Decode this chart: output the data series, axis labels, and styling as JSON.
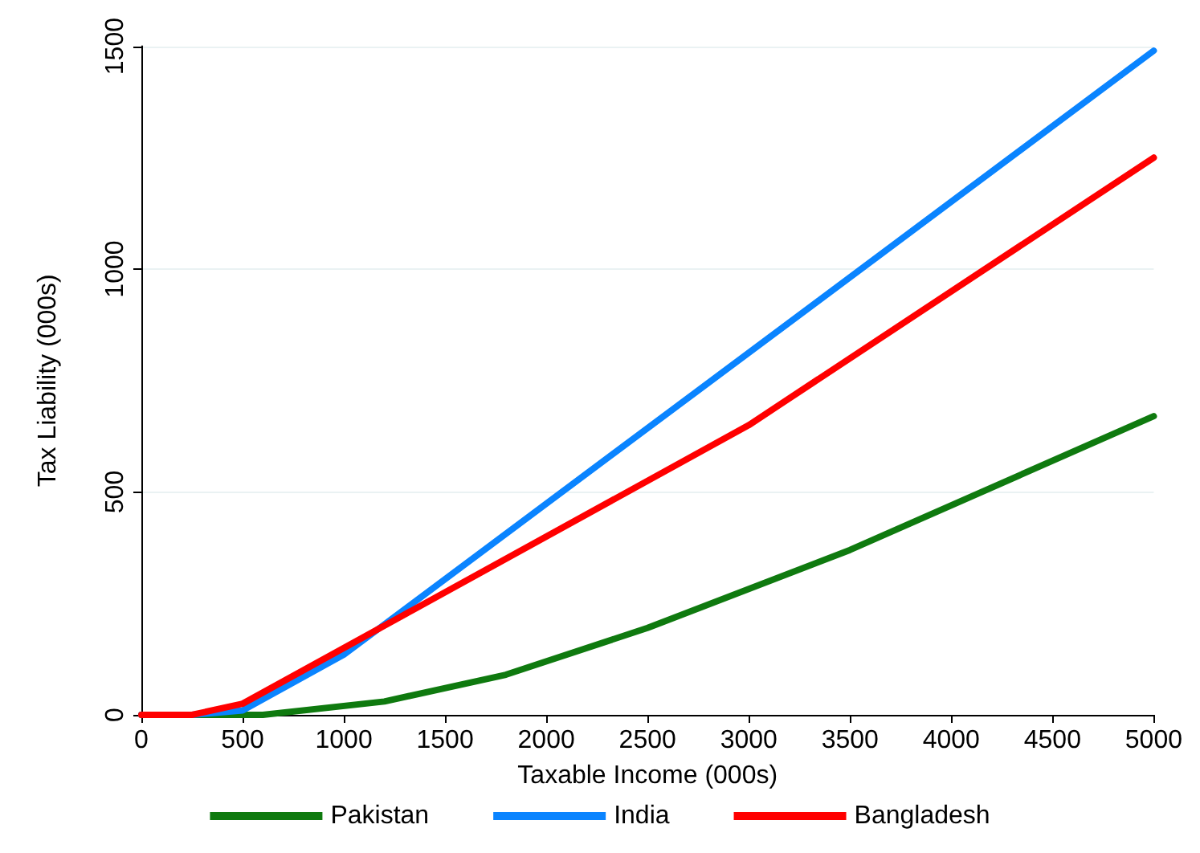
{
  "chart_data": {
    "type": "line",
    "xlabel": "Taxable Income (000s)",
    "ylabel": "Tax Liability (000s)",
    "xlim": [
      0,
      5000
    ],
    "xticks": [
      0,
      500,
      1000,
      1500,
      2000,
      2500,
      3000,
      3500,
      4000,
      4500,
      5000
    ],
    "ylim": [
      0,
      1500
    ],
    "yticks": [
      0,
      500,
      1000,
      1500
    ],
    "grid": "y",
    "legend": "bottom",
    "marker": "none",
    "line_style": "solid",
    "series": [
      {
        "name": "Pakistan",
        "color": "#0f7a0f",
        "x": [
          0,
          400,
          600,
          1200,
          1800,
          2500,
          3500,
          5000
        ],
        "values": [
          0,
          0,
          0,
          30,
          90,
          195,
          370,
          670
        ]
      },
      {
        "name": "India",
        "color": "#0a84ff",
        "x": [
          0,
          250,
          500,
          1000,
          5000
        ],
        "values": [
          0,
          0,
          10,
          135,
          1490
        ]
      },
      {
        "name": "Bangladesh",
        "color": "#ff0000",
        "x": [
          0,
          250,
          500,
          1200,
          3000,
          5000
        ],
        "values": [
          0,
          0,
          25,
          200,
          650,
          1250
        ]
      }
    ]
  }
}
